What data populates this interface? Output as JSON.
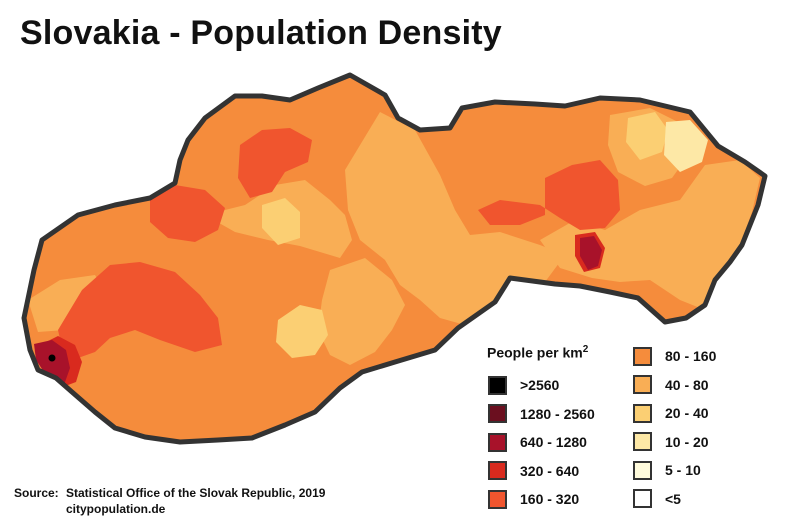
{
  "title": "Slovakia - Population Density",
  "legend": {
    "heading": "People per km",
    "heading_sup": "2",
    "left_items": [
      {
        "label": ">2560",
        "color": "#000000"
      },
      {
        "label": "1280 - 2560",
        "color": "#6b0f1f"
      },
      {
        "label": "640 - 1280",
        "color": "#a8122a"
      },
      {
        "label": "320 - 640",
        "color": "#d92a1e"
      },
      {
        "label": "160 - 320",
        "color": "#f0552e"
      }
    ],
    "right_items": [
      {
        "label": "80 - 160",
        "color": "#f58c3c"
      },
      {
        "label": "40 - 80",
        "color": "#f9ae55"
      },
      {
        "label": "20 - 40",
        "color": "#fbcf73"
      },
      {
        "label": "10 - 20",
        "color": "#fde8a6"
      },
      {
        "label": "5 - 10",
        "color": "#fffbdc"
      },
      {
        "label": "<5",
        "color": "#ffffff"
      }
    ]
  },
  "source": {
    "key": "Source:",
    "line1": "Statistical Office of the Slovak Republic, 2019",
    "line2": "citypopulation.de"
  },
  "map": {
    "outline_color": "#333333",
    "base_color": "#f58c3c"
  }
}
